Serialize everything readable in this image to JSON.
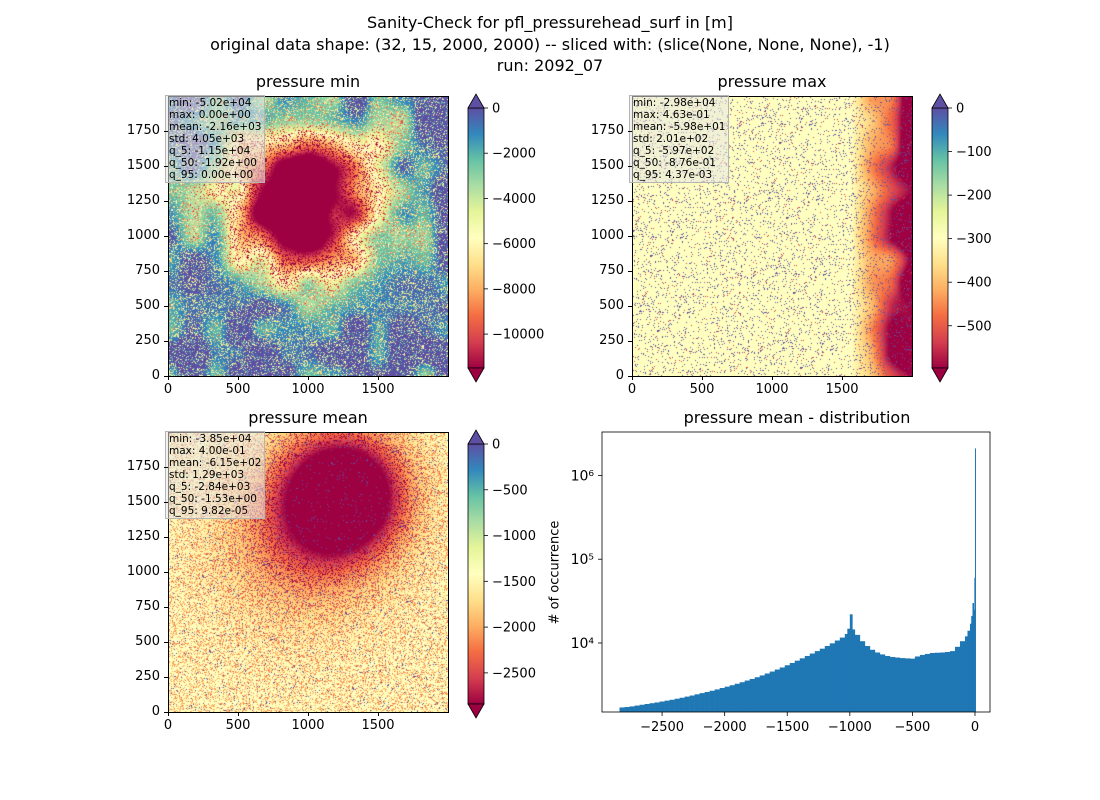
{
  "figure": {
    "title_line1": "Sanity-Check for pfl_pressurehead_surf in [m]",
    "title_line2": "original data shape: (32, 15, 2000, 2000) -- sliced with: (slice(None, None, None), -1)",
    "title_line3": "run: 2092_07"
  },
  "colormap": {
    "name": "Spectral",
    "stops": [
      "#9e0142",
      "#d53e4f",
      "#f46d43",
      "#fdae61",
      "#fee08b",
      "#ffffbf",
      "#e6f598",
      "#abdda4",
      "#66c2a5",
      "#3288bd",
      "#5e4fa2"
    ],
    "over_color": "#5e4fa2",
    "under_color": "#9e0142"
  },
  "chart_data": [
    {
      "type": "heatmap",
      "title": "pressure min",
      "xlim": [
        0,
        2000
      ],
      "ylim": [
        0,
        2000
      ],
      "xticks": [
        0,
        500,
        1000,
        1500
      ],
      "xtick_labels": [
        "0",
        "500",
        "1000",
        "1500"
      ],
      "yticks": [
        0,
        250,
        500,
        750,
        1000,
        1250,
        1500,
        1750
      ],
      "ytick_labels": [
        "0",
        "250",
        "500",
        "750",
        "1000",
        "1250",
        "1500",
        "1750"
      ],
      "stats": [
        "min: -5.02e+04",
        "max: 0.00e+00",
        "mean: -2.16e+03",
        "std: 4.05e+03",
        "q_5: -1.15e+04",
        "q_50: -1.92e+00",
        "q_95: 0.00e+00"
      ],
      "colorbar": {
        "range": [
          -11500,
          0
        ],
        "ticks": [
          0,
          -2000,
          -4000,
          -6000,
          -8000,
          -10000
        ],
        "tick_labels": [
          "0",
          "−2000",
          "−4000",
          "−6000",
          "−8000",
          "−10000"
        ],
        "extend": "both"
      }
    },
    {
      "type": "heatmap",
      "title": "pressure max",
      "xlim": [
        0,
        2000
      ],
      "ylim": [
        0,
        2000
      ],
      "xticks": [
        0,
        500,
        1000,
        1500
      ],
      "xtick_labels": [
        "0",
        "500",
        "1000",
        "1500"
      ],
      "yticks": [
        0,
        250,
        500,
        750,
        1000,
        1250,
        1500,
        1750
      ],
      "ytick_labels": [
        "0",
        "250",
        "500",
        "750",
        "1000",
        "1250",
        "1500",
        "1750"
      ],
      "stats": [
        "min: -2.98e+04",
        "max: 4.63e-01",
        "mean: -5.98e+01",
        "std: 2.01e+02",
        "q_5: -5.97e+02",
        "q_50: -8.76e-01",
        "q_95: 4.37e-03"
      ],
      "colorbar": {
        "range": [
          -597,
          0
        ],
        "ticks": [
          0,
          -100,
          -200,
          -300,
          -400,
          -500
        ],
        "tick_labels": [
          "0",
          "−100",
          "−200",
          "−300",
          "−400",
          "−500"
        ],
        "extend": "both"
      }
    },
    {
      "type": "heatmap",
      "title": "pressure mean",
      "xlim": [
        0,
        2000
      ],
      "ylim": [
        0,
        2000
      ],
      "xticks": [
        0,
        500,
        1000,
        1500
      ],
      "xtick_labels": [
        "0",
        "500",
        "1000",
        "1500"
      ],
      "yticks": [
        0,
        250,
        500,
        750,
        1000,
        1250,
        1500,
        1750
      ],
      "ytick_labels": [
        "0",
        "250",
        "500",
        "750",
        "1000",
        "1250",
        "1500",
        "1750"
      ],
      "stats": [
        "min: -3.85e+04",
        "max: 4.00e-01",
        "mean: -6.15e+02",
        "std: 1.29e+03",
        "q_5: -2.84e+03",
        "q_50: -1.53e+00",
        "q_95: 9.82e-05"
      ],
      "colorbar": {
        "range": [
          -2840,
          0
        ],
        "ticks": [
          0,
          -500,
          -1000,
          -1500,
          -2000,
          -2500
        ],
        "tick_labels": [
          "0",
          "−500",
          "−1000",
          "−1500",
          "−2000",
          "−2500"
        ],
        "extend": "both"
      }
    },
    {
      "type": "bar",
      "title": "pressure mean - distribution",
      "ylabel": "# of occurrence",
      "yscale": "log",
      "bar_color": "#1f77b4",
      "xlim": [
        -2980,
        120
      ],
      "ylim": [
        1500,
        3300000
      ],
      "xticks": [
        -2500,
        -2000,
        -1500,
        -1000,
        -500,
        0
      ],
      "xtick_labels": [
        "−2500",
        "−2000",
        "−1500",
        "−1000",
        "−500",
        "0"
      ],
      "yticks": [
        10000,
        100000,
        1000000
      ],
      "ytick_labels": [
        "10⁴",
        "10⁵",
        "10⁶"
      ],
      "bins": {
        "x": [
          -2840,
          -2800,
          -2760,
          -2720,
          -2680,
          -2640,
          -2600,
          -2560,
          -2520,
          -2480,
          -2440,
          -2400,
          -2360,
          -2320,
          -2280,
          -2240,
          -2200,
          -2160,
          -2120,
          -2080,
          -2040,
          -2000,
          -1960,
          -1920,
          -1880,
          -1840,
          -1800,
          -1760,
          -1720,
          -1680,
          -1640,
          -1600,
          -1560,
          -1520,
          -1480,
          -1440,
          -1400,
          -1360,
          -1320,
          -1280,
          -1240,
          -1200,
          -1160,
          -1120,
          -1080,
          -1040,
          -1020,
          -1000,
          -980,
          -960,
          -920,
          -880,
          -840,
          -800,
          -760,
          -720,
          -680,
          -640,
          -600,
          -560,
          -520,
          -480,
          -440,
          -400,
          -360,
          -320,
          -280,
          -240,
          -200,
          -160,
          -120,
          -80,
          -60,
          -40,
          -30,
          -20,
          -10,
          -5,
          0
        ],
        "values": [
          1700,
          1720,
          1750,
          1790,
          1830,
          1870,
          1910,
          1950,
          2000,
          2050,
          2100,
          2160,
          2220,
          2290,
          2360,
          2440,
          2520,
          2600,
          2690,
          2790,
          2900,
          3010,
          3130,
          3260,
          3400,
          3560,
          3720,
          3900,
          4100,
          4320,
          4560,
          4820,
          5100,
          5420,
          5770,
          6150,
          6560,
          7000,
          7480,
          8000,
          8550,
          9200,
          9900,
          10700,
          11600,
          12800,
          14800,
          22000,
          14500,
          12500,
          10500,
          9200,
          8300,
          7700,
          7300,
          7000,
          6800,
          6700,
          6600,
          6550,
          6500,
          6900,
          7200,
          7400,
          7600,
          7650,
          7700,
          7800,
          8000,
          9000,
          10500,
          12000,
          14000,
          17000,
          21000,
          30000,
          25000,
          60000,
          2100000
        ]
      }
    }
  ]
}
